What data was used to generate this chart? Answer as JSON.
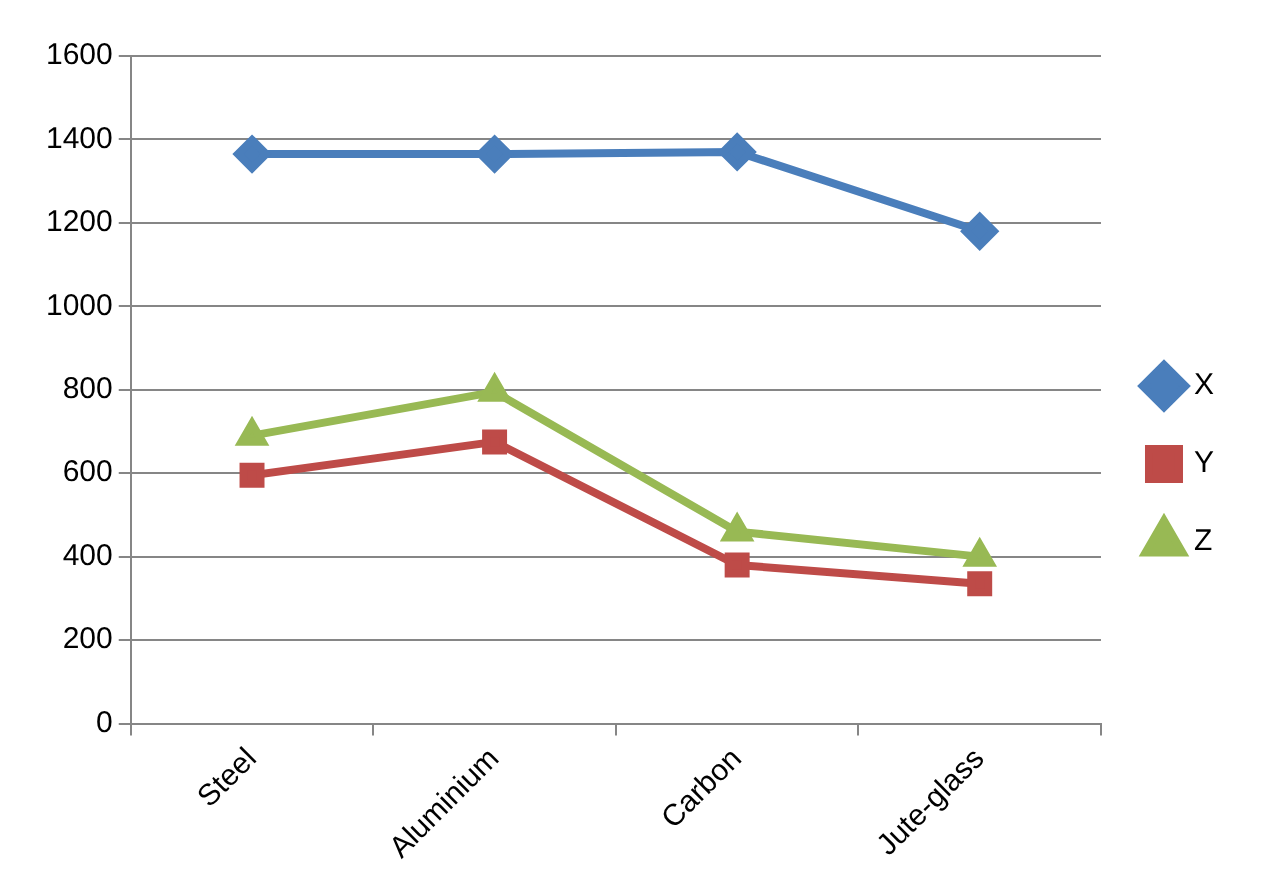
{
  "chart_data": {
    "type": "line",
    "categories": [
      "Steel",
      "Aluminium",
      "Carbon",
      "Jute-glass"
    ],
    "series": [
      {
        "name": "X",
        "color": "#4a7ebb",
        "marker": "diamond",
        "values": [
          1365,
          1365,
          1370,
          1180
        ]
      },
      {
        "name": "Y",
        "color": "#be4b48",
        "marker": "square",
        "values": [
          595,
          675,
          380,
          335
        ]
      },
      {
        "name": "Z",
        "color": "#98b954",
        "marker": "triangle",
        "values": [
          690,
          795,
          460,
          400
        ]
      }
    ],
    "ylim": [
      0,
      1600
    ],
    "yticks": [
      0,
      200,
      400,
      600,
      800,
      1000,
      1200,
      1400,
      1600
    ],
    "grid": "y",
    "legend": "right"
  }
}
